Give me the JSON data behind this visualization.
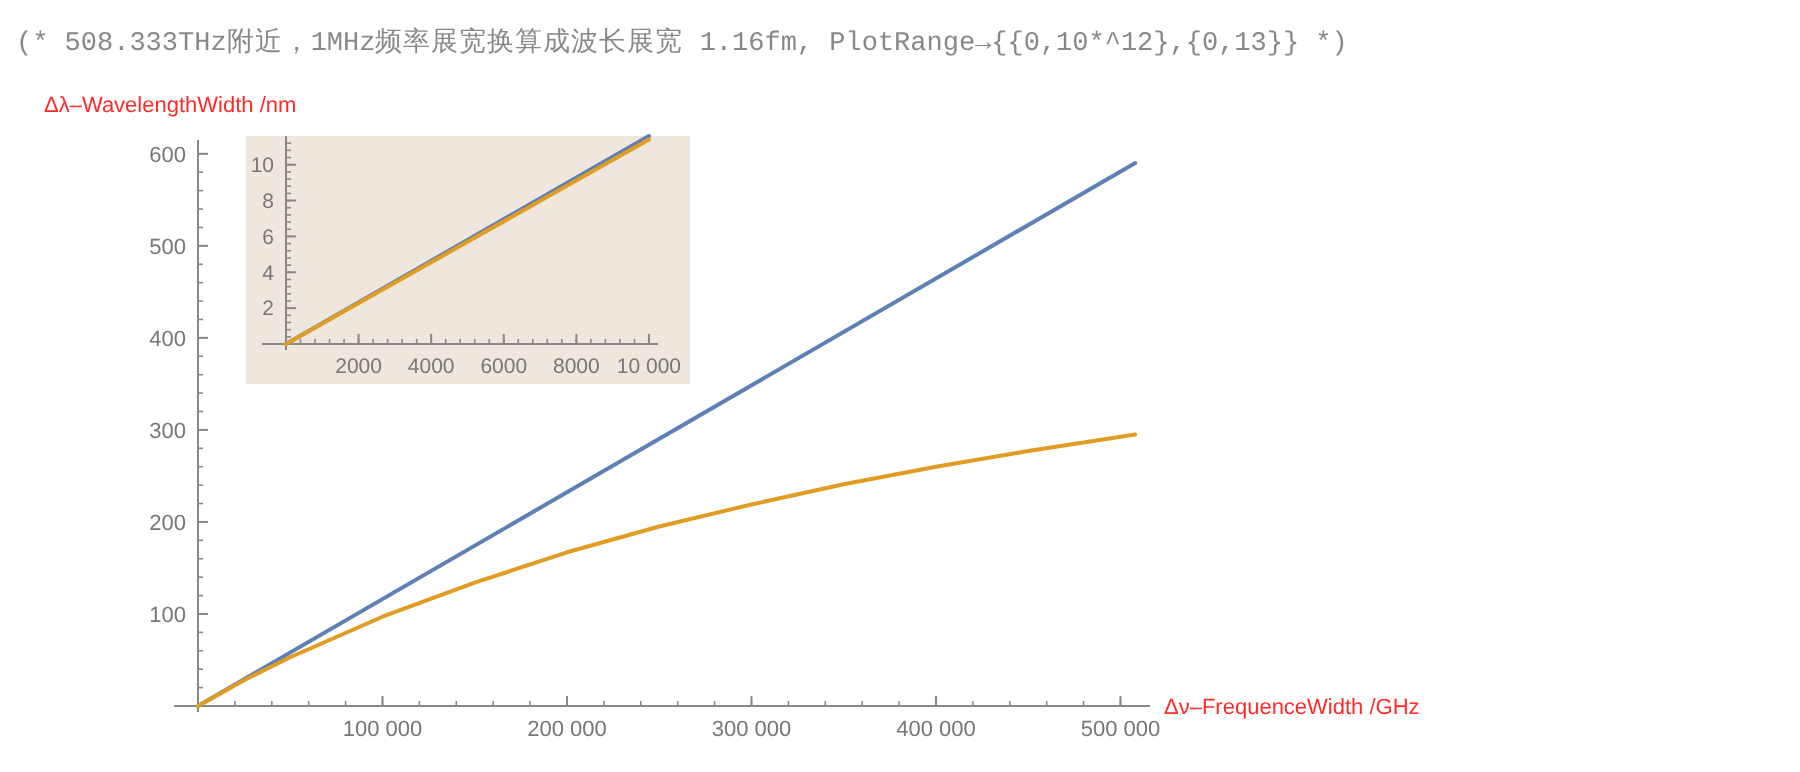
{
  "chart_data": [
    {
      "type": "line",
      "title": "(* 508.333THz附近，1MHz频率展宽换算成波长展宽 1.16fm, PlotRange→{{0,10*^12},{0,13}} *)",
      "xlabel": "Δν–FrequenceWidth /GHz",
      "ylabel": "Δλ–WavelengthWidth /nm",
      "xlim": [
        0,
        516000
      ],
      "ylim": [
        0,
        615
      ],
      "xticks": [
        {
          "value": 100000,
          "label": "100 000"
        },
        {
          "value": 200000,
          "label": "200 000"
        },
        {
          "value": 300000,
          "label": "300 000"
        },
        {
          "value": 400000,
          "label": "400 000"
        },
        {
          "value": 500000,
          "label": "500 000"
        }
      ],
      "yticks": [
        100,
        200,
        300,
        400,
        500,
        600
      ],
      "series": [
        {
          "color": "#5e81b5",
          "x": [
            0,
            508000
          ],
          "values": [
            0,
            590
          ]
        },
        {
          "color": "#e19c24",
          "x": [
            0,
            25000,
            50000,
            100000,
            150000,
            200000,
            250000,
            300000,
            350000,
            400000,
            450000,
            508000
          ],
          "values": [
            0,
            28,
            53,
            97,
            134,
            167,
            195,
            219,
            241,
            260,
            277,
            295
          ]
        }
      ]
    },
    {
      "type": "line",
      "xlim": [
        0,
        10250
      ],
      "ylim": [
        0,
        11.6
      ],
      "xticks": [
        2000,
        4000,
        6000,
        8000,
        {
          "value": 10000,
          "label": "10 000"
        }
      ],
      "yticks": [
        2,
        4,
        6,
        8,
        10
      ],
      "series": [
        {
          "color": "#5e81b5",
          "x": [
            0,
            5000,
            10000
          ],
          "values": [
            0,
            5.8,
            11.6
          ]
        },
        {
          "color": "#e19c24",
          "x": [
            0,
            5000,
            10000
          ],
          "values": [
            0,
            5.7,
            11.4
          ]
        }
      ]
    }
  ]
}
